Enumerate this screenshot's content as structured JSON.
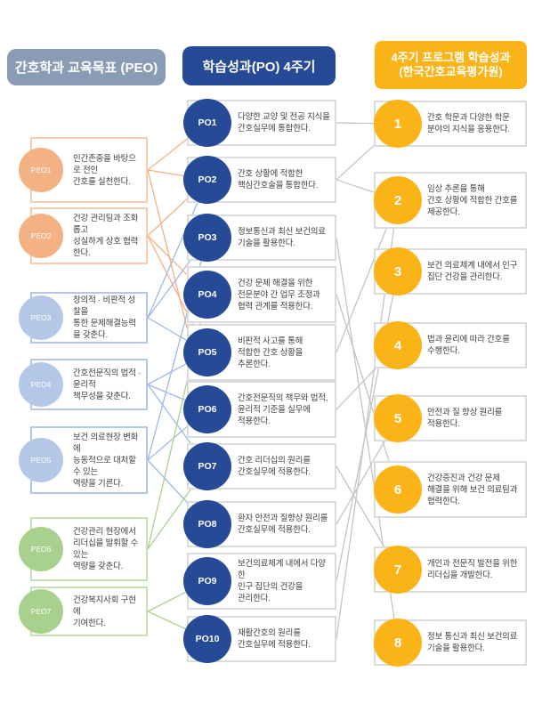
{
  "headers": {
    "left": "간호학과 교육목표 (PEO)",
    "middle": "학습성과(PO) 4주기",
    "right_line1": "4주기 프로그램 학습성과",
    "right_line2": "(한국간호교육평가원)"
  },
  "peo_items": [
    {
      "id": "peo1",
      "label": "PEO1",
      "group": "orange",
      "text": "인간존중을 바탕으로 전인\n간호를 실천한다."
    },
    {
      "id": "peo2",
      "label": "PEO2",
      "group": "orange",
      "text": "건강 관리팀과 조화롭고\n성실하게 상호 협력한다."
    },
    {
      "id": "peo3",
      "label": "PEO3",
      "group": "blue",
      "text": "창의적 · 비판적 성찰을\n통한 문제해결능력을 갖춘다."
    },
    {
      "id": "peo4",
      "label": "PEO4",
      "group": "blue",
      "text": "간호전문직의 법적 · 윤리적\n책무성을 갖춘다."
    },
    {
      "id": "peo5",
      "label": "PEO5",
      "group": "blue",
      "text": "보건 의료현장 변화에\n능동적으로 대처할 수 있는\n역량을 기른다."
    },
    {
      "id": "peo6",
      "label": "PEO6",
      "group": "green",
      "text": "건강관리 현장에서\n리더십을 발휘할 수 있는\n역량을 갖춘다."
    },
    {
      "id": "peo7",
      "label": "PEO7",
      "group": "green",
      "text": "건강복지사회 구현에\n기여한다."
    }
  ],
  "po_items": [
    {
      "id": "po1",
      "label": "PO1",
      "text": "다양한 교양 및 전공 지식을\n간호실무에 통합한다."
    },
    {
      "id": "po2",
      "label": "PO2",
      "text": "간호 상황에 적합한\n핵심간호술을 통합한다."
    },
    {
      "id": "po3",
      "label": "PO3",
      "text": "정보통신과 최신 보건의료\n기술을 활용한다."
    },
    {
      "id": "po4",
      "label": "PO4",
      "text": "건강 문제 해결을 위한\n전문분야 간 업무 조정과\n협력 관계를 적용한다."
    },
    {
      "id": "po5",
      "label": "PO5",
      "text": "비판적 사고를 통해\n적합한 간호 상황을\n추론한다."
    },
    {
      "id": "po6",
      "label": "PO6",
      "text": "간호전문직의 책무와 법적,\n윤리적 기준을 실무에\n적용한다."
    },
    {
      "id": "po7",
      "label": "PO7",
      "text": "간호 리더십의 원리를\n간호실무에 적용한다."
    },
    {
      "id": "po8",
      "label": "PO8",
      "text": "환자 안전과 질향상 원리를\n간호실무에 적용한다."
    },
    {
      "id": "po9",
      "label": "PO9",
      "text": "보건의료체계 내에서 다양한\n인구 집단의 건강을\n관리한다."
    },
    {
      "id": "po10",
      "label": "PO10",
      "text": "재활간호의 원리를\n간호실무에 적용한다."
    }
  ],
  "outcome_items": [
    {
      "id": "out1",
      "label": "1",
      "text": "간호 학문과 다양한 학문\n분야의 지식을 응용한다."
    },
    {
      "id": "out2",
      "label": "2",
      "text": "임상 추론을 통해\n간호 상황에 적합한 간호를\n제공한다."
    },
    {
      "id": "out3",
      "label": "3",
      "text": "보건 의료체계 내에서 인구\n집단 건강을 관리한다."
    },
    {
      "id": "out4",
      "label": "4",
      "text": "법과 윤리에 따라 간호를\n수행한다."
    },
    {
      "id": "out5",
      "label": "5",
      "text": "안전과 질 향상 원리를\n적용한다."
    },
    {
      "id": "out6",
      "label": "6",
      "text": "건강증진과 건강 문제\n해결을 위해 보건 의료팀과\n협력한다."
    },
    {
      "id": "out7",
      "label": "7",
      "text": "개인과 전문직 발전을 위한\n리더십을 개발한다."
    },
    {
      "id": "out8",
      "label": "8",
      "text": "정보 통신과 최신 보건의료\n기술을 활용한다."
    }
  ],
  "connections": {
    "peo_to_po": [
      [
        "peo1",
        "po1"
      ],
      [
        "peo1",
        "po2"
      ],
      [
        "peo1",
        "po6"
      ],
      [
        "peo2",
        "po2"
      ],
      [
        "peo2",
        "po4"
      ],
      [
        "peo2",
        "po5"
      ],
      [
        "peo3",
        "po2"
      ],
      [
        "peo3",
        "po3"
      ],
      [
        "peo3",
        "po5"
      ],
      [
        "peo4",
        "po5"
      ],
      [
        "peo4",
        "po6"
      ],
      [
        "peo4",
        "po7"
      ],
      [
        "peo5",
        "po3"
      ],
      [
        "peo5",
        "po6"
      ],
      [
        "peo5",
        "po8"
      ],
      [
        "peo6",
        "po4"
      ],
      [
        "peo6",
        "po7"
      ],
      [
        "peo7",
        "po9"
      ],
      [
        "peo7",
        "po10"
      ]
    ],
    "po_to_outcome": [
      [
        "po1",
        "out1"
      ],
      [
        "po2",
        "out1"
      ],
      [
        "po2",
        "out2"
      ],
      [
        "po5",
        "out2"
      ],
      [
        "po10",
        "out2"
      ],
      [
        "po9",
        "out3"
      ],
      [
        "po6",
        "out4"
      ],
      [
        "po8",
        "out5"
      ],
      [
        "po4",
        "out6"
      ],
      [
        "po7",
        "out7"
      ],
      [
        "po3",
        "out8"
      ]
    ]
  },
  "colors": {
    "navy": "#264A96",
    "slate_header": "#8A9BB5",
    "gold": "#FBB417",
    "orange_circle": "#F4B183",
    "orange_border": "#F8CBAD",
    "orange_line": "#F4B183",
    "blue_circle": "#B4C7E7",
    "blue_border": "#B4C7E7",
    "blue_line": "#9DB9E4",
    "green_circle": "#A9D18E",
    "green_border": "#C5E0B4",
    "green_line": "#A9D18E",
    "gray_border": "#DBDBDB",
    "gray_line": "#C4C4C4",
    "text": "#3F3F3F"
  }
}
